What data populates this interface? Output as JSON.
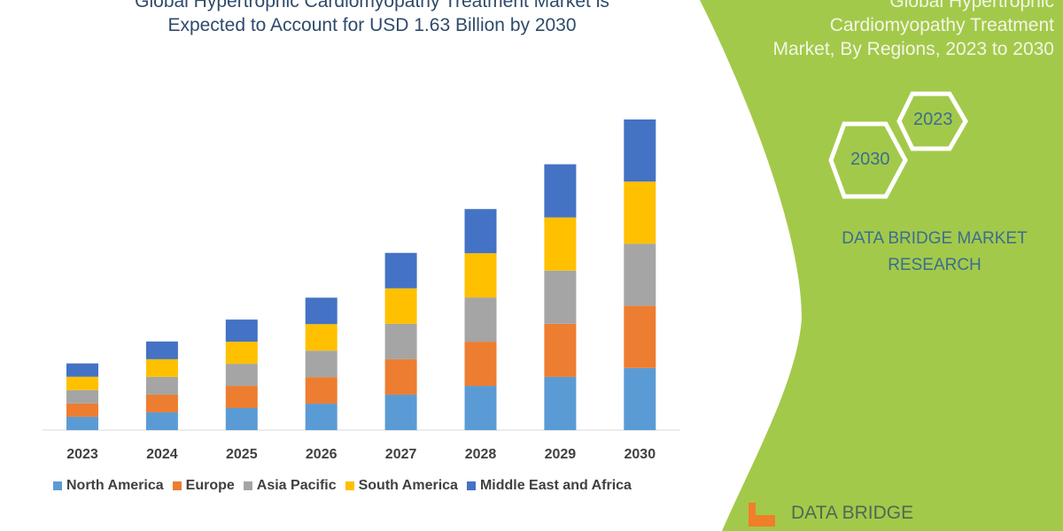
{
  "colors": {
    "north_america": "#5B9BD5",
    "europe": "#ED7D31",
    "asia_pacific": "#A5A5A5",
    "south_america": "#FFC000",
    "middle_east_africa": "#4472C4",
    "panel": "#A3C94A"
  },
  "left_title": [
    "Global Hypertrophic Cardiomyopathy Treatment Market is",
    "Expected to Account for USD 1.63 Billion by 2030"
  ],
  "right_title": [
    "Global Hypertrophic",
    "Cardiomyopathy Treatment",
    "Market, By Regions, 2023 to 2030"
  ],
  "hexagons": {
    "first": "2023",
    "second": "2030"
  },
  "brand": [
    "DATA BRIDGE MARKET",
    "RESEARCH"
  ],
  "logo_text": "DATA BRIDGE",
  "chart_data": {
    "type": "bar",
    "stacked": true,
    "title": "Global Hypertrophic Cardiomyopathy Treatment Market is Expected to Account for USD 1.63 Billion by 2030",
    "categories": [
      "2023",
      "2024",
      "2025",
      "2026",
      "2027",
      "2028",
      "2029",
      "2030"
    ],
    "series": [
      {
        "name": "North America",
        "values": [
          0.07,
          0.093,
          0.116,
          0.139,
          0.186,
          0.232,
          0.279,
          0.326
        ]
      },
      {
        "name": "Europe",
        "values": [
          0.07,
          0.093,
          0.116,
          0.139,
          0.186,
          0.232,
          0.279,
          0.326
        ]
      },
      {
        "name": "Asia Pacific",
        "values": [
          0.07,
          0.093,
          0.116,
          0.139,
          0.186,
          0.232,
          0.279,
          0.326
        ]
      },
      {
        "name": "South America",
        "values": [
          0.07,
          0.093,
          0.116,
          0.139,
          0.186,
          0.232,
          0.279,
          0.326
        ]
      },
      {
        "name": "Middle East and Africa",
        "values": [
          0.07,
          0.093,
          0.116,
          0.139,
          0.186,
          0.232,
          0.279,
          0.326
        ]
      }
    ],
    "ylim": [
      0,
      1.63
    ],
    "grid": false,
    "legend_position": "bottom",
    "y_axis_shown": false
  }
}
